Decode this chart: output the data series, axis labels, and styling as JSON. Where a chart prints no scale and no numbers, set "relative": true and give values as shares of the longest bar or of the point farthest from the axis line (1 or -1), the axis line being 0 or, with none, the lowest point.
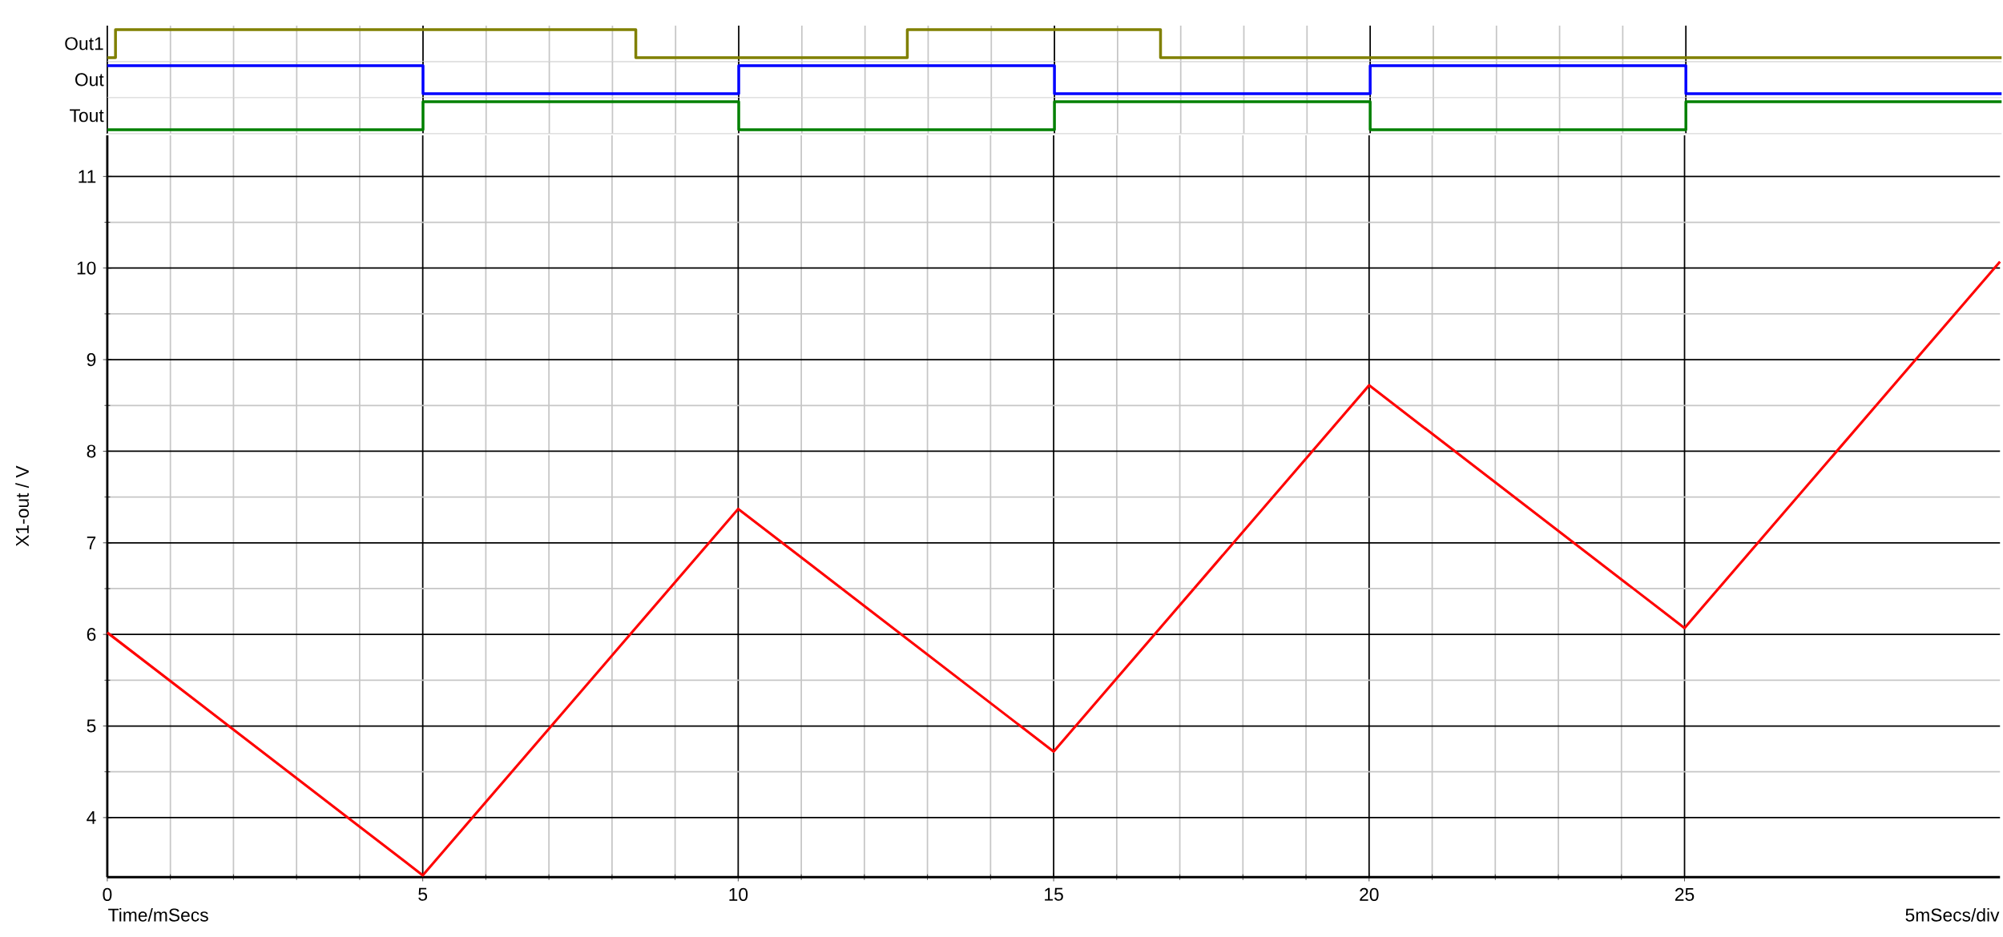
{
  "chart_data": [
    {
      "type": "step",
      "ylabel": "Out1",
      "relative": true,
      "xlim": [
        0,
        30
      ],
      "xticks": [
        0,
        5,
        10,
        15,
        20,
        25
      ],
      "tick_labels": false,
      "grid": "x",
      "x": [
        0,
        0.13,
        8.37,
        12.67,
        16.68,
        30
      ],
      "series": [
        {
          "color": "#808000",
          "values": [
            0,
            1,
            0,
            1,
            0,
            0
          ]
        }
      ]
    },
    {
      "type": "step",
      "ylabel": "Out",
      "relative": true,
      "xlim": [
        0,
        30
      ],
      "xticks": [
        0,
        5,
        10,
        15,
        20,
        25
      ],
      "tick_labels": false,
      "grid": "x",
      "x": [
        0,
        5,
        10,
        15,
        20,
        25,
        30
      ],
      "series": [
        {
          "color": "#0000ff",
          "values": [
            1,
            0,
            1,
            0,
            1,
            0,
            0
          ]
        }
      ]
    },
    {
      "type": "step",
      "ylabel": "Tout",
      "relative": true,
      "xlim": [
        0,
        30
      ],
      "xticks": [
        0,
        5,
        10,
        15,
        20,
        25
      ],
      "tick_labels": false,
      "grid": "x",
      "x": [
        0,
        5,
        10,
        15,
        20,
        25,
        30
      ],
      "series": [
        {
          "color": "#008000",
          "values": [
            0,
            1,
            0,
            1,
            0,
            1,
            1
          ]
        }
      ]
    },
    {
      "type": "line",
      "xlabel": "Time/mSecs",
      "ylabel": "X1-out / V",
      "annotations": [
        "5mSecs/div"
      ],
      "xlim": [
        0,
        30
      ],
      "ylim": [
        3.35,
        11.45
      ],
      "xticks": [
        0,
        5,
        10,
        15,
        20,
        25
      ],
      "yticks": [
        4,
        5,
        6,
        7,
        8,
        9,
        10,
        11
      ],
      "grid": true,
      "x": [
        0,
        5,
        10,
        15,
        20,
        25,
        30
      ],
      "series": [
        {
          "color": "#ff0000",
          "values": [
            6.02,
            3.37,
            7.37,
            4.72,
            8.72,
            6.07,
            10.07
          ]
        }
      ]
    }
  ]
}
